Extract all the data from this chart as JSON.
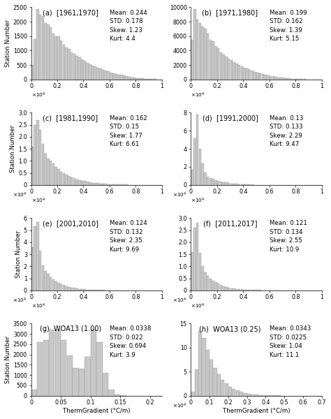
{
  "panels": [
    {
      "label": "(a)  [1961,1970]",
      "mean": 0.244,
      "std": 0.178,
      "skew": 1.23,
      "kurt": 4.4,
      "xmax": 1.0,
      "ylim": [
        0,
        2500
      ],
      "yticks": [
        0,
        500,
        1000,
        1500,
        2000,
        2500
      ],
      "xticks": [
        0,
        0.2,
        0.4,
        0.6,
        0.8,
        1.0
      ],
      "xticklabels": [
        "0",
        "0.2",
        "0.4",
        "0.6",
        "0.8",
        "1"
      ],
      "scale_label": "x10^4",
      "nbins": 50,
      "bar_heights": [
        500,
        1400,
        2450,
        2250,
        2200,
        1950,
        1900,
        1800,
        1600,
        1500,
        1500,
        1350,
        1200,
        1100,
        1050,
        950,
        880,
        820,
        760,
        700,
        640,
        580,
        520,
        490,
        450,
        410,
        380,
        340,
        310,
        280,
        250,
        220,
        200,
        175,
        155,
        135,
        115,
        95,
        80,
        65,
        55,
        45,
        35,
        28,
        22,
        17,
        12,
        9,
        6,
        3
      ]
    },
    {
      "label": "(b)  [1971,1980]",
      "mean": 0.199,
      "std": 0.162,
      "skew": 1.39,
      "kurt": 5.15,
      "xmax": 1.0,
      "ylim": [
        0,
        10000
      ],
      "yticks": [
        0,
        2000,
        4000,
        6000,
        8000,
        10000
      ],
      "xticks": [
        0,
        0.2,
        0.4,
        0.6,
        0.8,
        1.0
      ],
      "xticklabels": [
        "0",
        "0.2",
        "0.4",
        "0.6",
        "0.8",
        "1"
      ],
      "scale_label": "x10^4",
      "nbins": 50,
      "bar_heights": [
        5500,
        9800,
        8300,
        7800,
        7300,
        7000,
        6400,
        5500,
        5300,
        4600,
        4300,
        3800,
        3500,
        3200,
        2900,
        2700,
        2400,
        2200,
        2000,
        1850,
        1650,
        1500,
        1350,
        1200,
        1070,
        950,
        840,
        740,
        650,
        570,
        500,
        430,
        370,
        320,
        270,
        230,
        190,
        160,
        130,
        105,
        85,
        68,
        53,
        41,
        32,
        24,
        18,
        13,
        9,
        5
      ]
    },
    {
      "label": "(c)  [1981,1990]",
      "mean": 0.162,
      "std": 0.15,
      "skew": 1.77,
      "kurt": 6.61,
      "xmax": 1.0,
      "ylim": [
        0,
        3.0
      ],
      "yticks": [
        0,
        0.5,
        1.0,
        1.5,
        2.0,
        2.5,
        3.0
      ],
      "xticks": [
        0,
        0.2,
        0.4,
        0.6,
        0.8,
        1.0
      ],
      "xticklabels": [
        "0",
        "0.2",
        "0.4",
        "0.6",
        "0.8",
        "1"
      ],
      "scale_label": "x10^4",
      "scale_y": "x10^4",
      "nbins": 50,
      "bar_heights": [
        1.6,
        2.5,
        2.7,
        2.3,
        1.7,
        1.3,
        1.1,
        1.0,
        0.9,
        0.75,
        0.65,
        0.56,
        0.48,
        0.42,
        0.37,
        0.32,
        0.28,
        0.24,
        0.21,
        0.18,
        0.155,
        0.132,
        0.113,
        0.096,
        0.082,
        0.069,
        0.059,
        0.05,
        0.043,
        0.036,
        0.031,
        0.026,
        0.022,
        0.018,
        0.015,
        0.012,
        0.01,
        0.008,
        0.007,
        0.006,
        0.005,
        0.004,
        0.003,
        0.002,
        0.002,
        0.001,
        0.001,
        0.001,
        0,
        0
      ]
    },
    {
      "label": "(d)  [1991,2000]",
      "mean": 0.13,
      "std": 0.133,
      "skew": 2.29,
      "kurt": 9.47,
      "xmax": 1.0,
      "ylim": [
        0,
        8.0
      ],
      "yticks": [
        0,
        2,
        4,
        6,
        8
      ],
      "xticks": [
        0,
        0.2,
        0.4,
        0.6,
        0.8,
        1.0
      ],
      "xticklabels": [
        "0",
        "0.2",
        "0.4",
        "0.6",
        "0.8",
        "1"
      ],
      "scale_label": "x10^4",
      "scale_y": "x10^4",
      "nbins": 50,
      "bar_heights": [
        1.7,
        5.2,
        7.8,
        4.0,
        2.4,
        1.4,
        0.95,
        0.78,
        0.66,
        0.55,
        0.46,
        0.38,
        0.32,
        0.26,
        0.21,
        0.17,
        0.14,
        0.113,
        0.092,
        0.074,
        0.06,
        0.048,
        0.038,
        0.03,
        0.024,
        0.019,
        0.015,
        0.012,
        0.009,
        0.007,
        0.006,
        0.005,
        0.004,
        0.003,
        0.002,
        0.002,
        0.001,
        0.001,
        0.001,
        0,
        0,
        0,
        0,
        0,
        0,
        0,
        0,
        0,
        0,
        0
      ]
    },
    {
      "label": "(e)  [2001,2010]",
      "mean": 0.124,
      "std": 0.132,
      "skew": 2.35,
      "kurt": 9.69,
      "xmax": 1.0,
      "ylim": [
        0,
        6.0
      ],
      "yticks": [
        0,
        1,
        2,
        3,
        4,
        5,
        6
      ],
      "xticks": [
        0,
        0.2,
        0.4,
        0.6,
        0.8,
        1.0
      ],
      "xticklabels": [
        "0",
        "0.2",
        "0.4",
        "0.6",
        "0.8",
        "1"
      ],
      "scale_label": "x10^4",
      "scale_y": "x10^4",
      "nbins": 50,
      "bar_heights": [
        3.6,
        5.3,
        5.7,
        3.3,
        2.1,
        1.6,
        1.35,
        1.1,
        0.92,
        0.76,
        0.63,
        0.52,
        0.43,
        0.35,
        0.29,
        0.24,
        0.19,
        0.155,
        0.127,
        0.103,
        0.084,
        0.068,
        0.055,
        0.044,
        0.036,
        0.029,
        0.023,
        0.018,
        0.015,
        0.012,
        0.009,
        0.007,
        0.006,
        0.005,
        0.004,
        0.003,
        0.002,
        0.002,
        0.001,
        0.001,
        0,
        0,
        0,
        0,
        0,
        0,
        0,
        0,
        0,
        0
      ]
    },
    {
      "label": "(f)  [2011,2017]",
      "mean": 0.121,
      "std": 0.134,
      "skew": 2.55,
      "kurt": 10.9,
      "xmax": 1.0,
      "ylim": [
        0,
        3.0
      ],
      "yticks": [
        0,
        0.5,
        1.0,
        1.5,
        2.0,
        2.5,
        3.0
      ],
      "xticks": [
        0,
        0.2,
        0.4,
        0.6,
        0.8,
        1.0
      ],
      "xticklabels": [
        "0",
        "0.2",
        "0.4",
        "0.6",
        "0.8",
        "1"
      ],
      "scale_label": "x10^4",
      "scale_y": "x10^4",
      "nbins": 50,
      "bar_heights": [
        1.6,
        2.6,
        2.8,
        1.55,
        1.0,
        0.75,
        0.61,
        0.5,
        0.41,
        0.34,
        0.27,
        0.22,
        0.18,
        0.145,
        0.117,
        0.094,
        0.076,
        0.061,
        0.049,
        0.039,
        0.032,
        0.025,
        0.02,
        0.016,
        0.013,
        0.01,
        0.008,
        0.007,
        0.005,
        0.004,
        0.003,
        0.003,
        0.002,
        0.002,
        0.001,
        0.001,
        0.001,
        0,
        0,
        0,
        0,
        0,
        0,
        0,
        0,
        0,
        0,
        0,
        0,
        0
      ]
    },
    {
      "label": "(g)  WOA13 (1.00)",
      "mean": 0.0338,
      "std": 0.022,
      "skew": 0.694,
      "kurt": 3.9,
      "xmax": 0.22,
      "xlim": [
        0,
        0.22
      ],
      "xticks": [
        0,
        0.05,
        0.1,
        0.15,
        0.2
      ],
      "xticklabels": [
        "0",
        "0.05",
        "0.1",
        "0.15",
        "0.2"
      ],
      "ylim": [
        0,
        3500
      ],
      "yticks": [
        0,
        500,
        1000,
        1500,
        2000,
        2500,
        3000,
        3500
      ],
      "nbins": 22,
      "bar_heights": [
        300,
        2600,
        2700,
        3200,
        3200,
        2700,
        1950,
        1350,
        1300,
        1900,
        3200,
        2600,
        1100,
        290,
        50,
        10,
        3,
        1,
        0,
        0,
        0,
        0
      ]
    },
    {
      "label": "(h)  WOA13 (0.25)",
      "mean": 0.0343,
      "std": 0.0225,
      "skew": 1.04,
      "kurt": 11.1,
      "xmax": 0.7,
      "xlim": [
        0,
        0.7
      ],
      "xticks": [
        0,
        0.1,
        0.2,
        0.3,
        0.4,
        0.5,
        0.6,
        0.7
      ],
      "xticklabels": [
        "0",
        "0.1",
        "0.2",
        "0.3",
        "0.4",
        "0.5",
        "0.6",
        "0.7"
      ],
      "ylim": [
        0,
        15
      ],
      "yticks": [
        0,
        5,
        10,
        15
      ],
      "scale_y": "x10^4",
      "nbins": 35,
      "bar_heights": [
        0.8,
        5.5,
        13.5,
        12.0,
        9.5,
        7.5,
        5.8,
        4.4,
        3.3,
        2.5,
        1.9,
        1.4,
        1.05,
        0.78,
        0.58,
        0.43,
        0.32,
        0.23,
        0.17,
        0.12,
        0.09,
        0.065,
        0.047,
        0.033,
        0.023,
        0.016,
        0.011,
        0.008,
        0.005,
        0.003,
        0.002,
        0.001,
        0,
        0,
        0
      ]
    }
  ],
  "bar_color": "#c8c8c8",
  "bar_edge_color": "#999999",
  "xlabel": "ThermGradient (°C/m)",
  "ylabel": "Station Number",
  "figsize": [
    4.74,
    6.0
  ],
  "dpi": 100,
  "stats_fontsize": 6.2,
  "label_fontsize": 7.0,
  "tick_fontsize": 5.8,
  "axis_label_fontsize": 6.2
}
